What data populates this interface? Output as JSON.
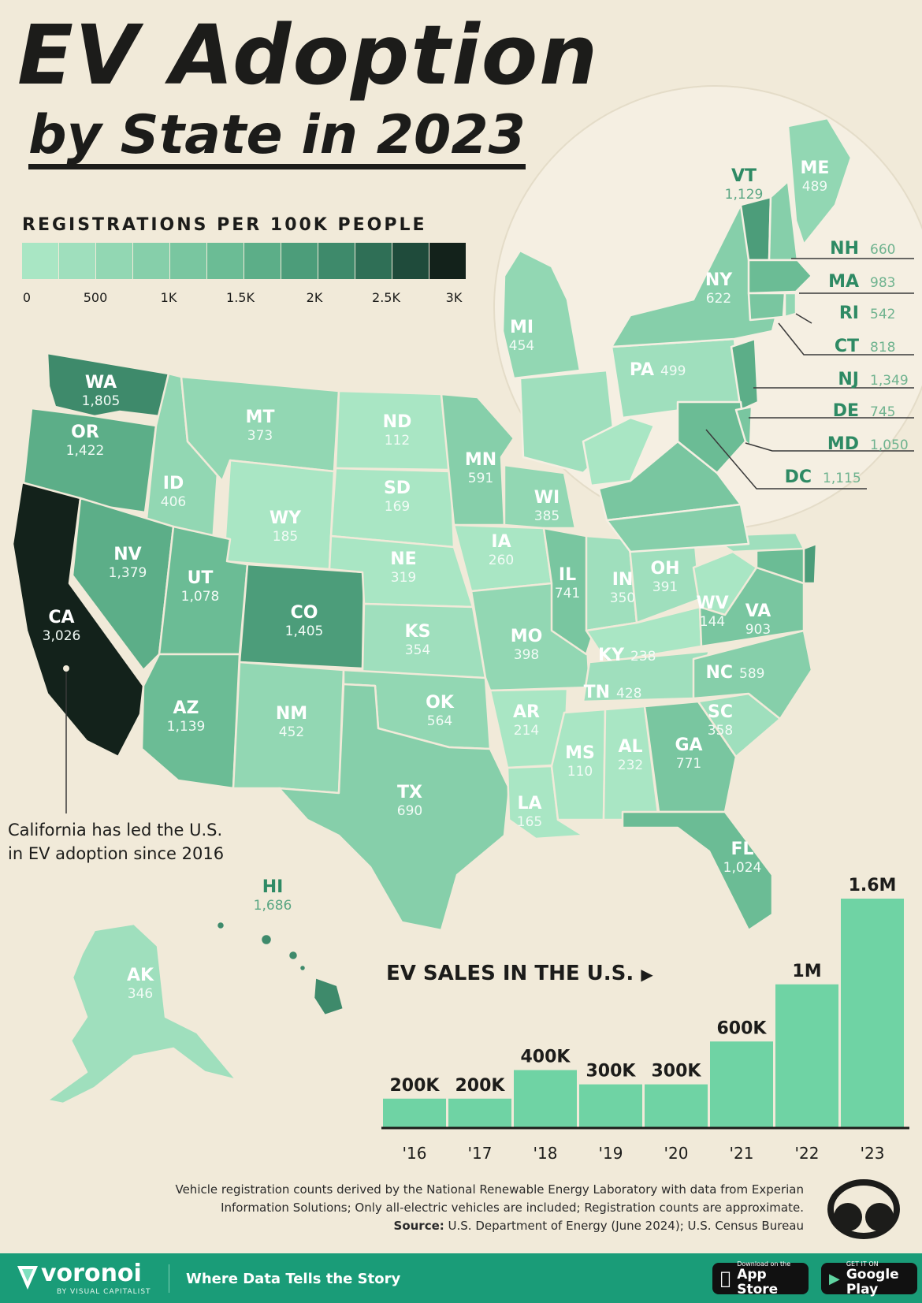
{
  "title_line1": "EV Adoption",
  "title_line2": "by State in 2023",
  "legend": {
    "title": "REGISTRATIONS PER 100K PEOPLE",
    "ticks": [
      "0",
      "500",
      "1K",
      "1.5K",
      "2K",
      "2.5K",
      "3K"
    ],
    "colors": [
      "#a9e6c4",
      "#9fdfbd",
      "#92d7b3",
      "#86cfaa",
      "#79c6a0",
      "#6bbc95",
      "#5cae88",
      "#4c9d7a",
      "#3e8a6b",
      "#2f6f56",
      "#1f4b3b",
      "#13221b"
    ]
  },
  "states": [
    {
      "code": "WA",
      "value": "1,805"
    },
    {
      "code": "OR",
      "value": "1,422"
    },
    {
      "code": "CA",
      "value": "3,026"
    },
    {
      "code": "ID",
      "value": "406"
    },
    {
      "code": "NV",
      "value": "1,379"
    },
    {
      "code": "MT",
      "value": "373"
    },
    {
      "code": "WY",
      "value": "185"
    },
    {
      "code": "UT",
      "value": "1,078"
    },
    {
      "code": "AZ",
      "value": "1,139"
    },
    {
      "code": "CO",
      "value": "1,405"
    },
    {
      "code": "NM",
      "value": "452"
    },
    {
      "code": "ND",
      "value": "112"
    },
    {
      "code": "SD",
      "value": "169"
    },
    {
      "code": "NE",
      "value": "319"
    },
    {
      "code": "KS",
      "value": "354"
    },
    {
      "code": "OK",
      "value": "564"
    },
    {
      "code": "TX",
      "value": "690"
    },
    {
      "code": "MN",
      "value": "591"
    },
    {
      "code": "IA",
      "value": "260"
    },
    {
      "code": "MO",
      "value": "398"
    },
    {
      "code": "AR",
      "value": "214"
    },
    {
      "code": "LA",
      "value": "165"
    },
    {
      "code": "WI",
      "value": "385"
    },
    {
      "code": "IL",
      "value": "741"
    },
    {
      "code": "IN",
      "value": "350"
    },
    {
      "code": "OH",
      "value": "391"
    },
    {
      "code": "KY",
      "value": "238"
    },
    {
      "code": "TN",
      "value": "428"
    },
    {
      "code": "MS",
      "value": "110"
    },
    {
      "code": "AL",
      "value": "232"
    },
    {
      "code": "GA",
      "value": "771"
    },
    {
      "code": "FL",
      "value": "1,024"
    },
    {
      "code": "SC",
      "value": "358"
    },
    {
      "code": "NC",
      "value": "589"
    },
    {
      "code": "VA",
      "value": "903"
    },
    {
      "code": "WV",
      "value": "144"
    },
    {
      "code": "MI",
      "value": "454"
    },
    {
      "code": "PA",
      "value": "499"
    },
    {
      "code": "NY",
      "value": "622"
    },
    {
      "code": "VT",
      "value": "1,129"
    },
    {
      "code": "ME",
      "value": "489"
    },
    {
      "code": "NH",
      "value": "660"
    },
    {
      "code": "MA",
      "value": "983"
    },
    {
      "code": "RI",
      "value": "542"
    },
    {
      "code": "CT",
      "value": "818"
    },
    {
      "code": "NJ",
      "value": "1,349"
    },
    {
      "code": "DE",
      "value": "745"
    },
    {
      "code": "MD",
      "value": "1,050"
    },
    {
      "code": "DC",
      "value": "1,115"
    },
    {
      "code": "HI",
      "value": "1,686"
    },
    {
      "code": "AK",
      "value": "346"
    }
  ],
  "callout": {
    "line1": "California has led the U.S.",
    "line2": "in EV adoption since 2016"
  },
  "chart_data": {
    "type": "bar",
    "title": "EV SALES IN THE U.S.",
    "categories": [
      "'16",
      "'17",
      "'18",
      "'19",
      "'20",
      "'21",
      "'22",
      "'23"
    ],
    "values": [
      200000,
      200000,
      400000,
      300000,
      300000,
      600000,
      1000000,
      1600000
    ],
    "value_labels": [
      "200K",
      "200K",
      "400K",
      "300K",
      "300K",
      "600K",
      "1M",
      "1.6M"
    ],
    "color": "#6fd3a4"
  },
  "source": {
    "note_line1": "Vehicle registration counts derived by the National Renewable Energy Laboratory with data from Experian",
    "note_line2": "Information Solutions; Only all-electric vehicles are included; Registration counts are approximate.",
    "label": "Source:",
    "text": " U.S. Department of Energy (June 2024); U.S. Census Bureau"
  },
  "footer": {
    "brand": "voronoi",
    "brand_sub": "BY VISUAL CAPITALIST",
    "tagline": "Where Data Tells the Story",
    "appstore_small": "Download on the",
    "appstore_big": "App Store",
    "play_small": "GET IT ON",
    "play_big": "Google Play"
  }
}
